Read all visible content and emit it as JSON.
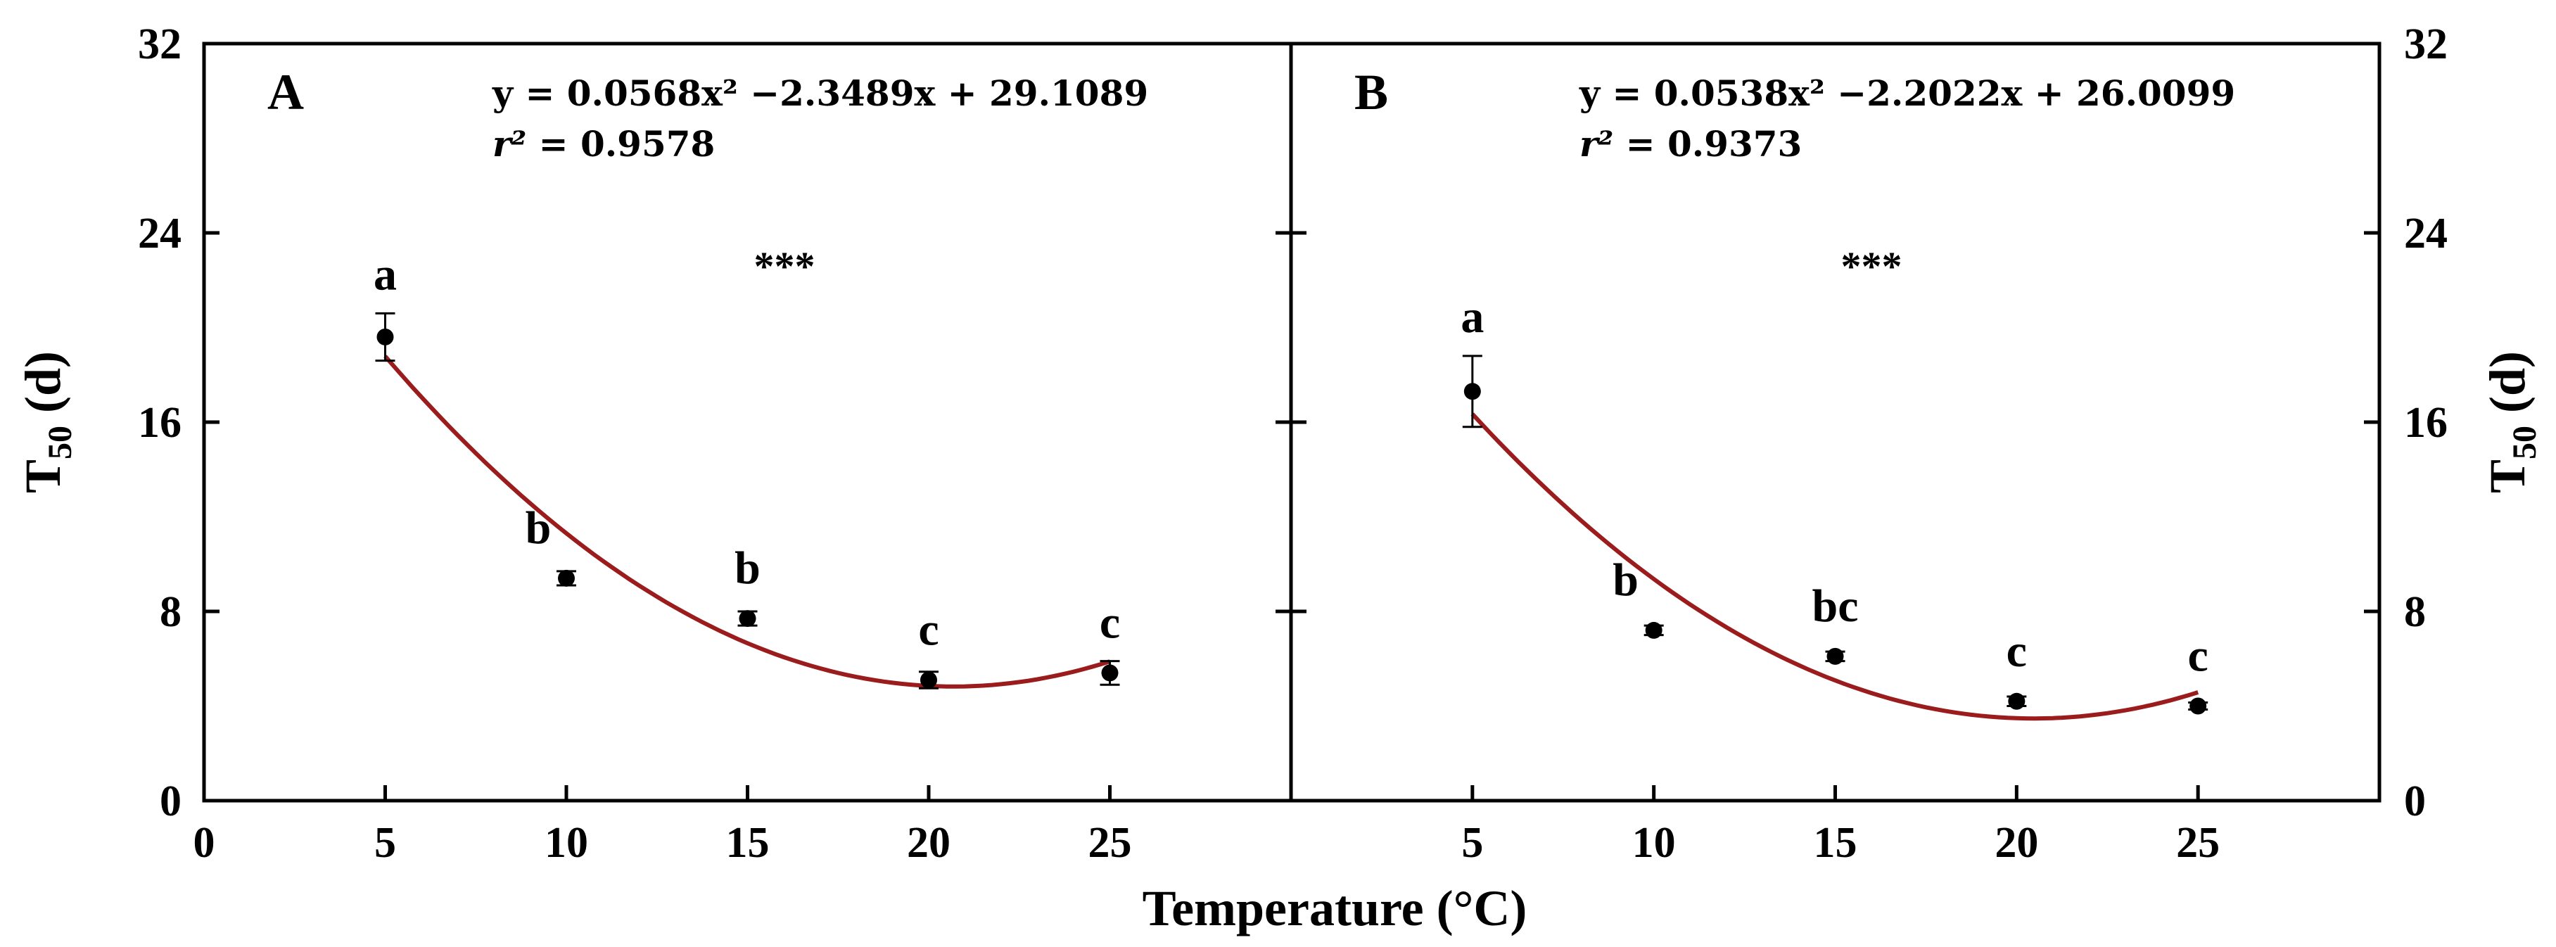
{
  "chart_data": {
    "type": "scatter",
    "x_axis_title": "Temperature (°C)",
    "y_axis_title": {
      "prefix": "T",
      "subscript": "50",
      "suffix": " (d)"
    },
    "ylim": [
      0,
      32
    ],
    "yticks": [
      0,
      8,
      16,
      24,
      32
    ],
    "panels": [
      {
        "id": "A",
        "letter": "A",
        "xlim": [
          0,
          30
        ],
        "xticks": [
          0,
          5,
          10,
          15,
          20,
          25
        ],
        "points": [
          {
            "x": 5,
            "y": 19.6,
            "err": 1.0,
            "label": "a"
          },
          {
            "x": 10,
            "y": 9.4,
            "err": 0.3,
            "label": "b"
          },
          {
            "x": 15,
            "y": 7.7,
            "err": 0.3,
            "label": "b"
          },
          {
            "x": 20,
            "y": 5.1,
            "err": 0.35,
            "label": "c"
          },
          {
            "x": 25,
            "y": 5.4,
            "err": 0.5,
            "label": "c"
          }
        ],
        "fit": {
          "a": 0.0568,
          "b": -2.3489,
          "c": 29.1089,
          "x_from": 5,
          "x_to": 25
        },
        "equation": {
          "y_label": "y",
          "eq_text": " = 0.0568x² −2.3489x + 29.1089",
          "r2_label": "r²",
          "r2_text": " = 0.9578"
        },
        "significance": "***"
      },
      {
        "id": "B",
        "letter": "B",
        "xlim": [
          0,
          30
        ],
        "xticks": [
          5,
          10,
          15,
          20,
          25
        ],
        "points": [
          {
            "x": 5,
            "y": 17.3,
            "err": 1.5,
            "label": "a"
          },
          {
            "x": 10,
            "y": 7.2,
            "err": 0.2,
            "label": "b"
          },
          {
            "x": 15,
            "y": 6.1,
            "err": 0.2,
            "label": "bc"
          },
          {
            "x": 20,
            "y": 4.2,
            "err": 0.2,
            "label": "c"
          },
          {
            "x": 25,
            "y": 4.0,
            "err": 0.15,
            "label": "c"
          }
        ],
        "fit": {
          "a": 0.0538,
          "b": -2.2022,
          "c": 26.0099,
          "x_from": 5,
          "x_to": 25
        },
        "equation": {
          "y_label": "y",
          "eq_text": " = 0.0538x² −2.2022x + 26.0099",
          "r2_label": "r²",
          "r2_text": " = 0.9373"
        },
        "significance": "***"
      }
    ],
    "colors": {
      "fit_line": "#9b1c1c",
      "points": "#000000",
      "axes": "#000000"
    }
  }
}
